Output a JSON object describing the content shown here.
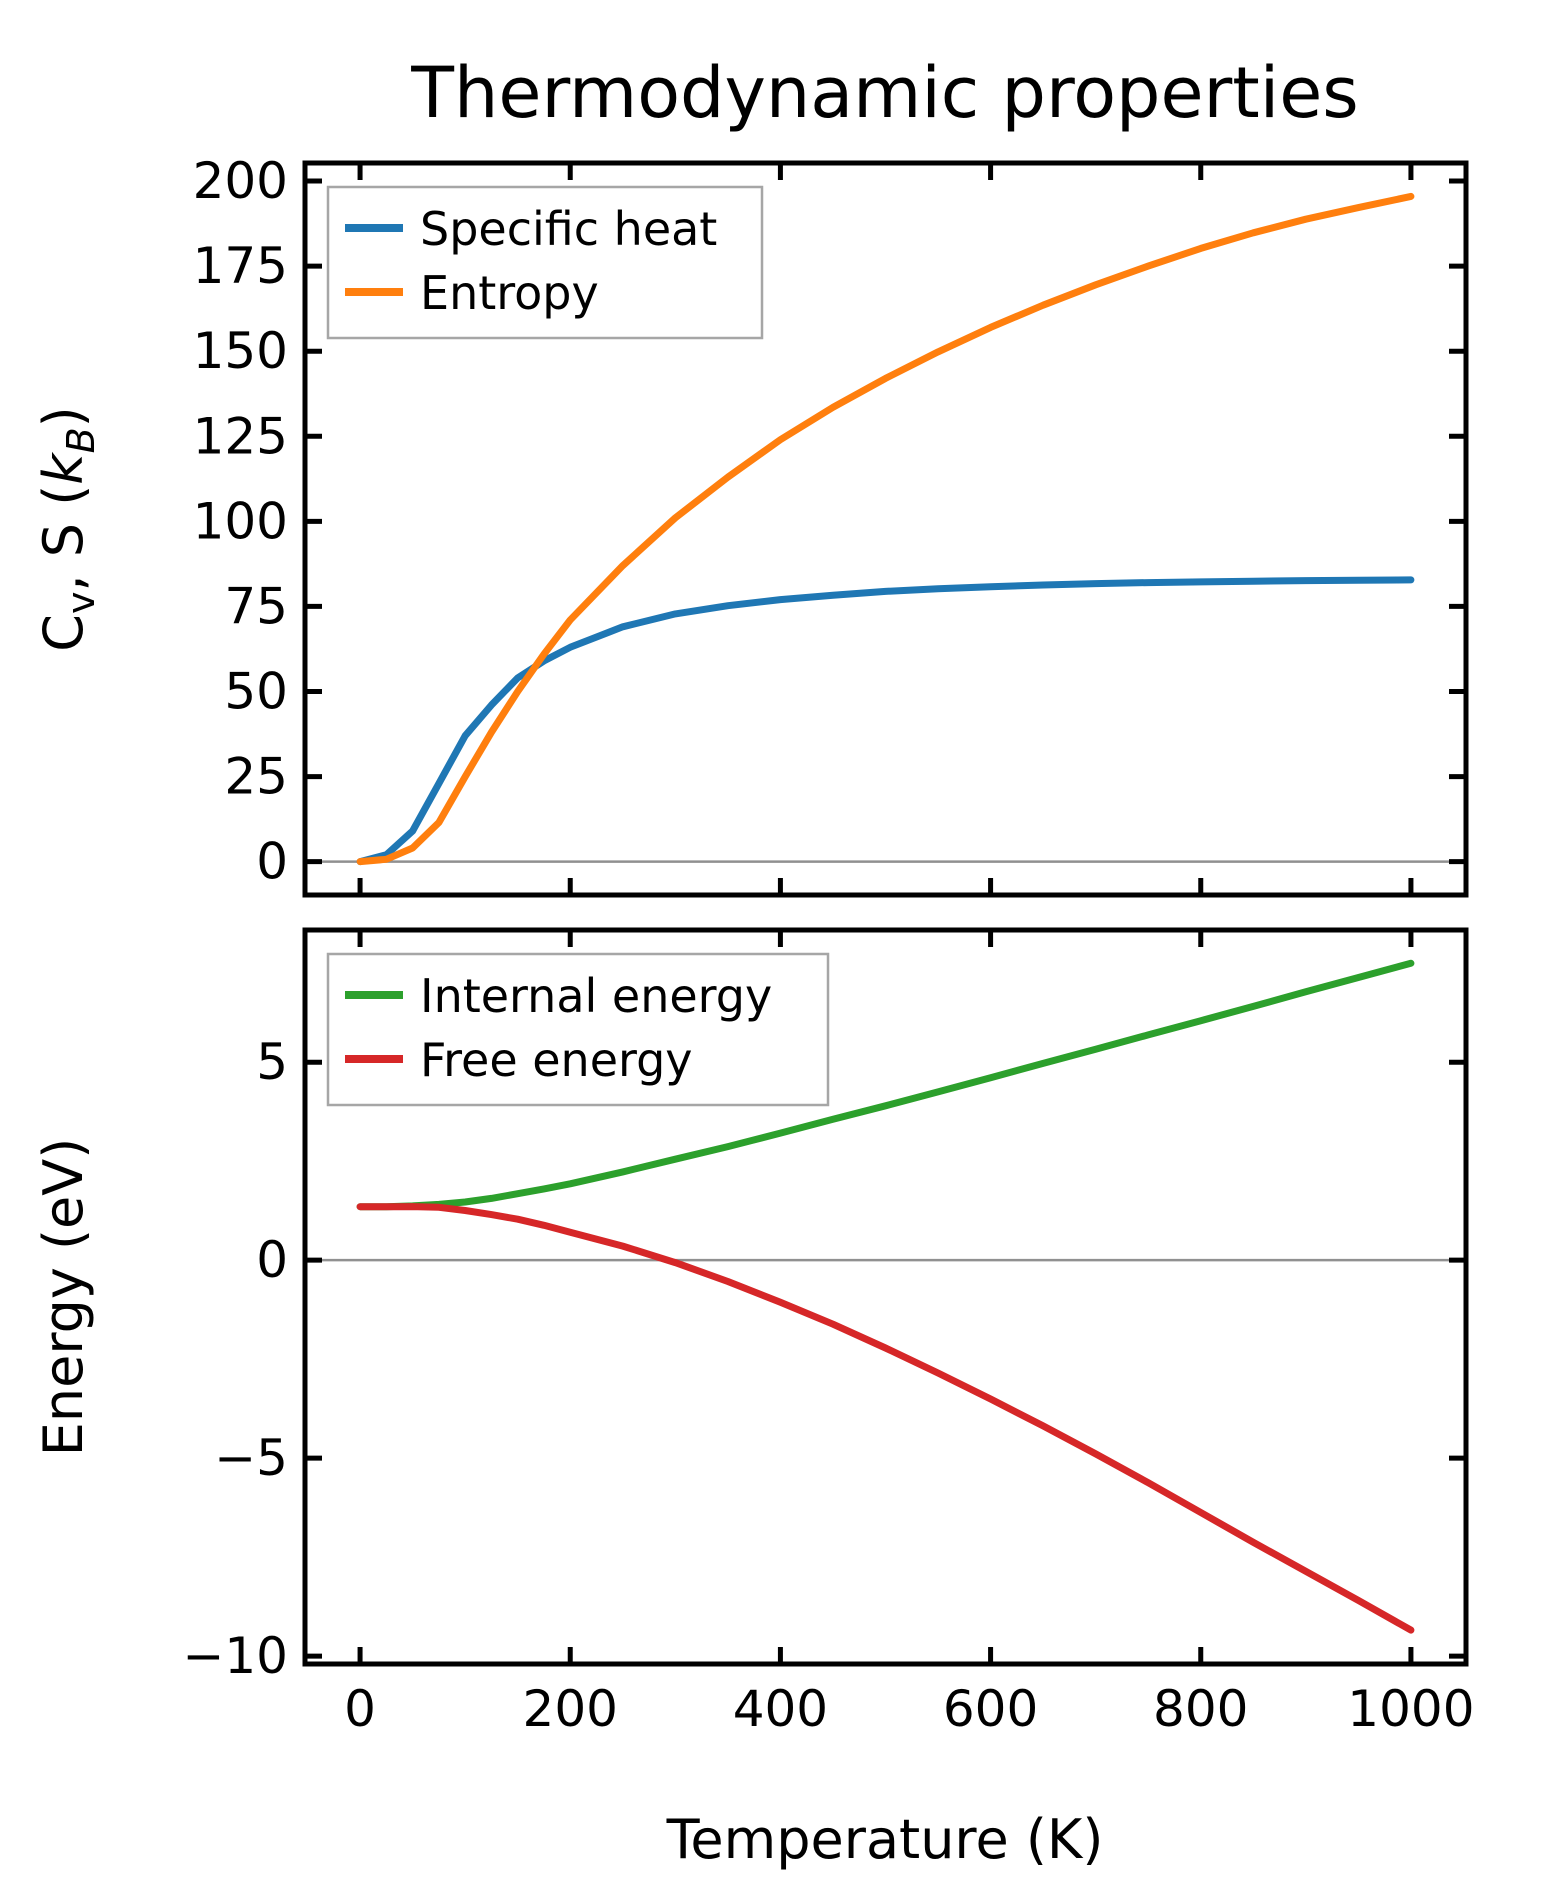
{
  "figure": {
    "title": "Thermodynamic properties",
    "background": "#ffffff",
    "xlabel": "Temperature (K)"
  },
  "chart_data": [
    {
      "type": "line",
      "subplot": "top",
      "title": "Thermodynamic properties",
      "xlabel": "",
      "ylabel": "Cv, S (kB)",
      "ylabel_parts": [
        {
          "t": "C"
        },
        {
          "t": "v",
          "sub": true
        },
        {
          "t": ", S ("
        },
        {
          "t": "k",
          "italic": true
        },
        {
          "t": "B",
          "sub": true,
          "italic": true
        },
        {
          "t": ")"
        }
      ],
      "xlim": [
        -52.4,
        1052.4
      ],
      "ylim": [
        -9.8,
        205.3
      ],
      "xticks": {
        "values": [
          0,
          200,
          400,
          600,
          800,
          1000
        ],
        "labels": [
          "",
          "",
          "",
          "",
          "",
          ""
        ]
      },
      "yticks": {
        "values": [
          0,
          25,
          50,
          75,
          100,
          125,
          150,
          175,
          200
        ],
        "labels": [
          "0",
          "25",
          "50",
          "75",
          "100",
          "125",
          "150",
          "175",
          "200"
        ]
      },
      "grid": false,
      "zero_line": {
        "show": true,
        "color": "#909090"
      },
      "legend": {
        "position": "upper-left",
        "border_color": "#a6a6a6",
        "fill": "#ffffff"
      },
      "x": [
        0,
        25,
        50,
        75,
        100,
        125,
        150,
        175,
        200,
        250,
        300,
        350,
        400,
        450,
        500,
        550,
        600,
        650,
        700,
        750,
        800,
        850,
        900,
        950,
        1000
      ],
      "series": [
        {
          "name": "Specific heat",
          "color": "#1f77b4",
          "values": [
            0,
            2,
            9,
            23,
            37,
            46,
            54,
            59,
            63,
            69,
            72.8,
            75.2,
            77,
            78.3,
            79.4,
            80.2,
            80.8,
            81.3,
            81.7,
            82,
            82.2,
            82.4,
            82.6,
            82.7,
            82.8
          ]
        },
        {
          "name": "Entropy",
          "color": "#ff7f0e",
          "values": [
            0,
            0.7,
            4,
            11.5,
            25,
            38,
            50,
            61,
            71,
            87,
            101,
            113,
            124,
            133.5,
            142,
            149.8,
            157,
            163.5,
            169.5,
            175,
            180.2,
            184.8,
            188.8,
            192.2,
            195.5
          ]
        }
      ]
    },
    {
      "type": "line",
      "subplot": "bottom",
      "title": "",
      "xlabel": "Temperature (K)",
      "ylabel": "Energy (eV)",
      "ylabel_parts": [
        {
          "t": "Energy (eV)"
        }
      ],
      "xlim": [
        -52.4,
        1052.4
      ],
      "ylim": [
        -10.2,
        8.34
      ],
      "xticks": {
        "values": [
          0,
          200,
          400,
          600,
          800,
          1000
        ],
        "labels": [
          "0",
          "200",
          "400",
          "600",
          "800",
          "1000"
        ]
      },
      "yticks": {
        "values": [
          5,
          0,
          -5,
          -10
        ],
        "labels": [
          "5",
          "0",
          "−5",
          "−10"
        ]
      },
      "grid": false,
      "zero_line": {
        "show": true,
        "color": "#909090"
      },
      "legend": {
        "position": "upper-left",
        "border_color": "#a6a6a6",
        "fill": "#ffffff"
      },
      "x": [
        0,
        25,
        50,
        75,
        100,
        125,
        150,
        175,
        200,
        250,
        300,
        350,
        400,
        450,
        500,
        550,
        600,
        650,
        700,
        750,
        800,
        850,
        900,
        950,
        1000
      ],
      "series": [
        {
          "name": "Internal energy",
          "color": "#2ca02c",
          "values": [
            1.35,
            1.352,
            1.37,
            1.41,
            1.47,
            1.56,
            1.68,
            1.8,
            1.93,
            2.23,
            2.55,
            2.87,
            3.21,
            3.56,
            3.9,
            4.25,
            4.61,
            4.97,
            5.33,
            5.69,
            6.05,
            6.41,
            6.78,
            7.14,
            7.5
          ]
        },
        {
          "name": "Free energy",
          "color": "#d62728",
          "values": [
            1.35,
            1.35,
            1.353,
            1.336,
            1.255,
            1.151,
            1.034,
            0.88,
            0.706,
            0.356,
            -0.061,
            -0.538,
            -1.064,
            -1.617,
            -2.218,
            -2.85,
            -3.507,
            -4.187,
            -4.894,
            -5.62,
            -6.374,
            -7.125,
            -7.859,
            -8.594,
            -9.343
          ]
        }
      ]
    }
  ]
}
